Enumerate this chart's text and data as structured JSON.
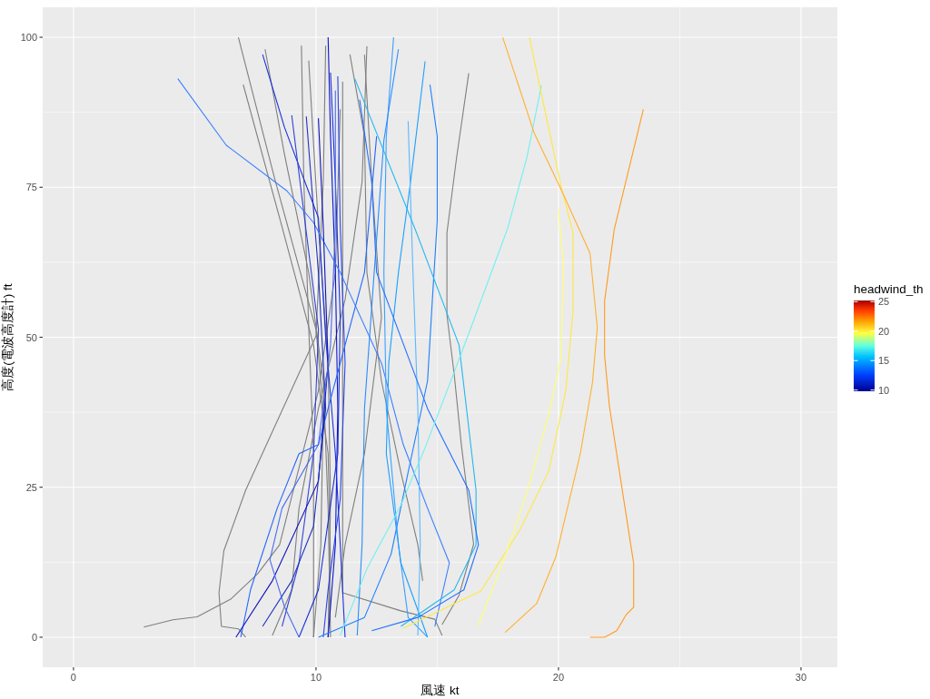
{
  "chart_data": {
    "type": "line",
    "xlabel": "風速 kt",
    "ylabel": "高度(電波高度計) ft",
    "clabel": "headwind_th",
    "clim": [
      9.8,
      25.2
    ],
    "cticks": [
      10,
      15,
      20,
      25
    ],
    "xlim": [
      -1.27,
      31.5
    ],
    "ylim": [
      -5,
      105
    ],
    "xticks": [
      0,
      10,
      20,
      30
    ],
    "yticks": [
      0,
      25,
      50,
      75,
      100
    ],
    "grid": true,
    "series": [
      {
        "color": "#7f7f7f",
        "x": [
          6.8,
          8.3,
          10.0,
          10.3,
          10.2,
          9.9
        ],
        "values": [
          100,
          76.4,
          51.3,
          38.1,
          15.4,
          0
        ]
      },
      {
        "color": "#7f7f7f",
        "x": [
          7.0,
          8.6,
          9.9,
          10.5,
          10.6,
          10.5
        ],
        "values": [
          92.1,
          68.4,
          48.7,
          30.6,
          12.4,
          0
        ]
      },
      {
        "color": "#7f7f7f",
        "x": [
          7.9,
          8.7,
          9.7,
          10.3,
          10.5,
          10.6
        ],
        "values": [
          98,
          80.5,
          60.8,
          42.7,
          21.5,
          0
        ]
      },
      {
        "color": "#7f7f7f",
        "x": [
          9.4,
          9.5,
          9.7,
          9.9,
          9.9
        ],
        "values": [
          98.6,
          75.9,
          51.7,
          30.6,
          0
        ]
      },
      {
        "color": "#7f7f7f",
        "x": [
          9.7,
          10.1,
          10.5,
          10.6,
          10.5
        ],
        "values": [
          96.1,
          68.4,
          45.7,
          23,
          0
        ]
      },
      {
        "color": "#7f7f7f",
        "x": [
          12.1,
          11.9,
          11.2,
          10.1,
          9.3,
          9.0,
          8.2
        ],
        "values": [
          98.5,
          75.9,
          56.3,
          38.1,
          21.5,
          7.9,
          0.3
        ]
      },
      {
        "color": "#7f7f7f",
        "x": [
          11.4,
          12.0,
          12.1,
          12.7,
          13.5,
          14.2,
          14.4
        ],
        "values": [
          97.1,
          83.5,
          60.8,
          42.7,
          27.5,
          15.4,
          9.4
        ]
      },
      {
        "color": "#7f7f7f",
        "x": [
          10.4,
          10.3,
          10.0,
          7.1,
          6.2,
          6.0,
          6.1,
          6.8,
          7.1
        ],
        "values": [
          98.6,
          75.9,
          50.2,
          24.5,
          14.4,
          7.4,
          1.8,
          1.4,
          0
        ]
      },
      {
        "color": "#7f7f7f",
        "x": [
          2.9,
          4.1,
          5.1,
          6.5,
          7.6,
          8.5,
          10.1,
          10.8,
          11.0
        ],
        "values": [
          1.7,
          2.9,
          3.4,
          6.4,
          10.6,
          15.4,
          41.1,
          60.8,
          88
        ]
      },
      {
        "color": "#7f7f7f",
        "x": [
          11.1,
          11.1,
          11.1,
          11.1,
          13.5,
          14.9,
          15.2
        ],
        "values": [
          92.6,
          60.8,
          30.6,
          7.4,
          4.4,
          3,
          0.3
        ]
      },
      {
        "color": "#7f7f7f",
        "x": [
          12.0,
          12.3,
          12.7,
          12.0,
          11.2,
          10.8
        ],
        "values": [
          97.1,
          75.9,
          53.3,
          30.6,
          15.4,
          3.3
        ]
      },
      {
        "color": "#7f7f7f",
        "x": [
          16.3,
          15.8,
          15.4,
          15.4,
          15.7,
          16.0,
          16.5,
          15.9,
          15.2
        ],
        "values": [
          94,
          80,
          67.4,
          53.7,
          43.8,
          31.9,
          15.5,
          7,
          2.1
        ]
      },
      {
        "color": "#0a14c8",
        "x": [
          10.5,
          10.6,
          10.8,
          10.9,
          10.8,
          10.5
        ],
        "values": [
          100,
          83.5,
          60.8,
          38.1,
          15.4,
          0
        ]
      },
      {
        "color": "#1a2fd8",
        "x": [
          10.6,
          10.8,
          11.0,
          10.9,
          10.1,
          9.3
        ],
        "values": [
          94.1,
          75.9,
          53.3,
          30.6,
          7.9,
          0
        ]
      },
      {
        "color": "#2a44e8",
        "x": [
          10.9,
          11.0,
          11.2,
          11.0,
          10.5,
          10.3
        ],
        "values": [
          93.5,
          68.4,
          45.7,
          23,
          7.9,
          0
        ]
      },
      {
        "color": "#1a30e0",
        "x": [
          7.8,
          8.7,
          10.1,
          10.4,
          10.8,
          11.0,
          11.2
        ],
        "values": [
          97.1,
          85,
          69.9,
          50,
          30.6,
          15.4,
          0
        ]
      },
      {
        "color": "#3040d8",
        "x": [
          9.0,
          10.1,
          9.9,
          9.3,
          8.6
        ],
        "values": [
          87,
          51.3,
          30.6,
          12.4,
          1.8
        ]
      },
      {
        "color": "#3a7fff",
        "x": [
          4.3,
          6.3,
          8.8,
          9.9,
          11.0,
          12.7,
          13.6,
          14.6,
          15.5,
          14.9
        ],
        "values": [
          93.1,
          82,
          74.4,
          69.1,
          60.8,
          45.7,
          32.1,
          21.5,
          12.4,
          1.8
        ]
      },
      {
        "color": "#2266ff",
        "x": [
          6.9,
          7.3,
          8.4,
          9.3,
          10.1,
          11.2,
          12.0,
          12.5
        ],
        "values": [
          0,
          7.9,
          21.5,
          30.6,
          32.1,
          48.7,
          60.8,
          83.5
        ]
      },
      {
        "color": "#1010b8",
        "x": [
          6.7,
          8.2,
          10.1,
          10.5,
          10.3,
          10.1
        ],
        "values": [
          0,
          9.4,
          26,
          45.7,
          68.4,
          86.5
        ]
      },
      {
        "color": "#2030c0",
        "x": [
          7.8,
          9.0,
          9.9,
          10.4,
          10.1,
          9.6
        ],
        "values": [
          1.8,
          9.4,
          18.5,
          38.1,
          60.8,
          86.8
        ]
      },
      {
        "color": "#4a6cf0",
        "x": [
          9.3,
          8.7,
          8.1,
          8.6,
          10.1,
          10.6,
          10.8,
          10.8
        ],
        "values": [
          0,
          5.1,
          12.9,
          21.5,
          32.1,
          48.7,
          68.4,
          91.1
        ]
      },
      {
        "color": "#1e7fff",
        "x": [
          14.7,
          15.0,
          15.0,
          14.8,
          14.6,
          13.8,
          13.1,
          12.0,
          10.1
        ],
        "values": [
          92.1,
          83.5,
          69.4,
          56.3,
          42.7,
          27.5,
          13.9,
          3.3,
          0
        ]
      },
      {
        "color": "#3aa0ff",
        "x": [
          13.2,
          12.9,
          12.8,
          12.9,
          13.4,
          13.8,
          14.6
        ],
        "values": [
          100,
          83.5,
          60.8,
          38.1,
          15.4,
          3.3,
          0
        ]
      },
      {
        "color": "#2a8cff",
        "x": [
          13.4,
          12.8,
          12.4,
          12.0,
          11.9,
          11.7
        ],
        "values": [
          98,
          82.8,
          60.8,
          38.1,
          15.4,
          0.3
        ]
      },
      {
        "color": "#1aa0ff",
        "x": [
          14.5,
          13.9,
          13.4,
          13.0,
          12.9,
          13.5,
          14.6
        ],
        "values": [
          96,
          75.9,
          60.8,
          45.7,
          30.6,
          12.4,
          0
        ]
      },
      {
        "color": "#5ab8ff",
        "x": [
          13.8,
          14.0,
          14.2,
          14.3,
          14.2
        ],
        "values": [
          86,
          60.8,
          38.1,
          15.4,
          0.3
        ]
      },
      {
        "color": "#22b8f0",
        "x": [
          11.6,
          14.1,
          15.9,
          16.6,
          16.6,
          15.7,
          13.5
        ],
        "values": [
          93.1,
          67.9,
          48.7,
          24.5,
          15.4,
          7.9,
          1.8
        ]
      },
      {
        "color": "#1f6fff",
        "x": [
          11.8,
          12.3,
          12.5,
          14.6,
          16.3,
          16.7,
          16.1,
          14.2,
          12.3
        ],
        "values": [
          89.6,
          75.9,
          60.8,
          38.1,
          24.5,
          15.4,
          7.9,
          3.3,
          1.1
        ]
      },
      {
        "color": "#70f0f0",
        "x": [
          19.3,
          18.7,
          17.9,
          16.4,
          15.7,
          14.5,
          13.5,
          12.1,
          11.0
        ],
        "values": [
          92,
          80,
          68.1,
          51.7,
          44.2,
          31.6,
          22,
          11.4,
          0.3
        ]
      },
      {
        "color": "#ffe840",
        "x": [
          18.8,
          20.1,
          20.6,
          20.6,
          20.3,
          19.6,
          18.4,
          16.8,
          13.6
        ],
        "values": [
          100,
          75.3,
          67.4,
          54.3,
          41.1,
          27.7,
          17.8,
          7.7,
          1.5
        ]
      },
      {
        "color": "#ffff70",
        "x": [
          20.0,
          20.2,
          20.1,
          19.6,
          18.7,
          17.8,
          17.3,
          16.7
        ],
        "values": [
          71.4,
          62.2,
          46.4,
          37.2,
          24.1,
          13.5,
          8.3,
          2.0
        ]
      },
      {
        "color": "#ffb030",
        "x": [
          17.7,
          19.0,
          20.1,
          21.3,
          21.6,
          21.4,
          20.9,
          19.9,
          19.1,
          17.8
        ],
        "values": [
          100,
          84,
          74.7,
          64,
          51.6,
          42.4,
          30.6,
          13.5,
          5.6,
          0.8
        ]
      },
      {
        "color": "#ff9a1f",
        "x": [
          23.5,
          22.3,
          21.9,
          21.9,
          22.1,
          22.7,
          23.1,
          23.1,
          22.8,
          22.4,
          21.9,
          21.3
        ],
        "values": [
          88,
          68,
          56,
          47,
          38.5,
          22.7,
          12.3,
          5,
          3.8,
          1.1,
          0,
          0
        ]
      }
    ]
  }
}
